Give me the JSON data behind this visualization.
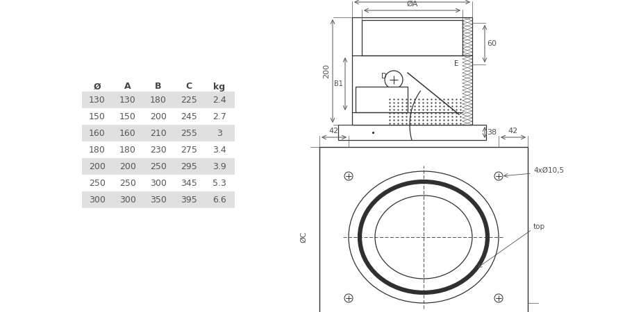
{
  "table_headers": [
    "Ø",
    "A",
    "B",
    "C",
    "kg"
  ],
  "table_rows": [
    [
      "130",
      "130",
      "180",
      "225",
      "2.4"
    ],
    [
      "150",
      "150",
      "200",
      "245",
      "2.7"
    ],
    [
      "160",
      "160",
      "210",
      "255",
      "3"
    ],
    [
      "180",
      "180",
      "230",
      "275",
      "3.4"
    ],
    [
      "200",
      "200",
      "250",
      "295",
      "3.9"
    ],
    [
      "250",
      "250",
      "300",
      "345",
      "5.3"
    ],
    [
      "300",
      "300",
      "350",
      "395",
      "6.6"
    ]
  ],
  "shaded_rows": [
    0,
    2,
    4,
    6
  ],
  "row_bg_color": "#e0e0e0",
  "text_color": "#555555",
  "header_color": "#444444",
  "line_color": "#303030",
  "dim_color": "#505050",
  "bg_color": "#ffffff"
}
